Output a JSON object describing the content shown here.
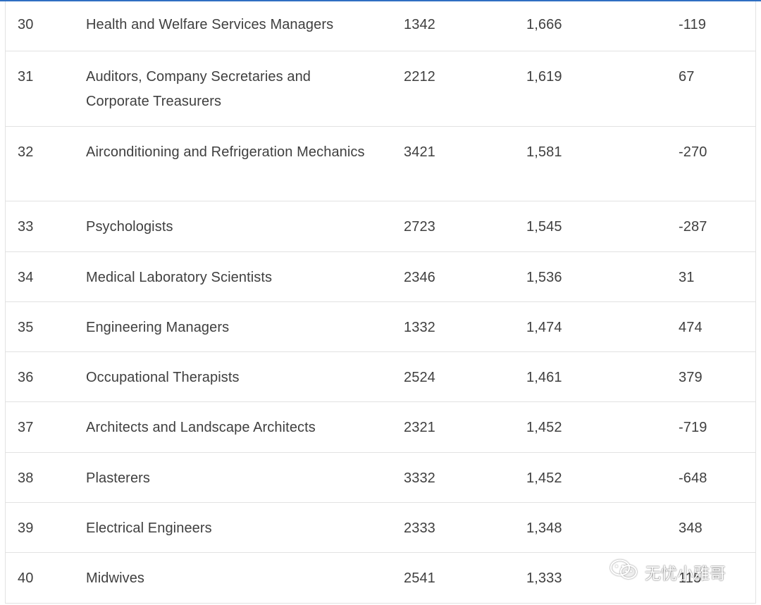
{
  "rows": [
    {
      "rank": "30",
      "occupation": "Health and Welfare Services Managers",
      "code": "1342",
      "count": "1,666",
      "change": "-119"
    },
    {
      "rank": "31",
      "occupation": "Auditors, Company Secretaries and Corporate Treasurers",
      "code": "2212",
      "count": "1,619",
      "change": "67"
    },
    {
      "rank": "32",
      "occupation": "Airconditioning and Refrigeration Mechanics",
      "code": "3421",
      "count": "1,581",
      "change": "-270"
    },
    {
      "rank": "33",
      "occupation": "Psychologists",
      "code": "2723",
      "count": "1,545",
      "change": "-287"
    },
    {
      "rank": "34",
      "occupation": "Medical Laboratory Scientists",
      "code": "2346",
      "count": "1,536",
      "change": "31"
    },
    {
      "rank": "35",
      "occupation": "Engineering Managers",
      "code": "1332",
      "count": "1,474",
      "change": "474"
    },
    {
      "rank": "36",
      "occupation": "Occupational Therapists",
      "code": "2524",
      "count": "1,461",
      "change": "379"
    },
    {
      "rank": "37",
      "occupation": "Architects and Landscape Architects",
      "code": "2321",
      "count": "1,452",
      "change": "-719"
    },
    {
      "rank": "38",
      "occupation": "Plasterers",
      "code": "3332",
      "count": "1,452",
      "change": "-648"
    },
    {
      "rank": "39",
      "occupation": "Electrical Engineers",
      "code": "2333",
      "count": "1,348",
      "change": "348"
    },
    {
      "rank": "40",
      "occupation": "Midwives",
      "code": "2541",
      "count": "1,333",
      "change": "115"
    }
  ],
  "watermark": {
    "text": "无忧小雅哥",
    "icon": "wechat-icon"
  },
  "colors": {
    "accent": "#2f6fc2",
    "border": "#e2e2e2",
    "text": "#3f3f3f"
  }
}
